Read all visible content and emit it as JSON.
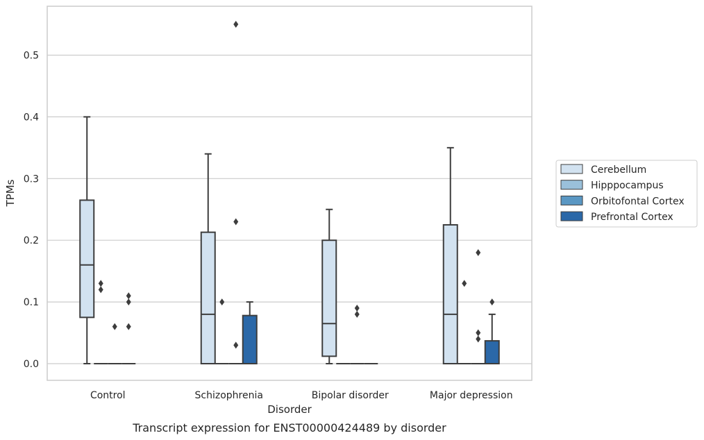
{
  "chart_data": {
    "type": "box",
    "title": "",
    "caption": "Transcript expression for ENST00000424489 by disorder",
    "xlabel": "Disorder",
    "ylabel": "TPMs",
    "ylim": [
      -0.027,
      0.58
    ],
    "yticks": [
      "0.0",
      "0.1",
      "0.2",
      "0.3",
      "0.4",
      "0.5"
    ],
    "categories": [
      "Control",
      "Schizophrenia",
      "Bipolar disorder",
      "Major depression"
    ],
    "grid": "horizontal",
    "legend_position": "right",
    "series": [
      {
        "name": "Cerebellum",
        "color": "#d2e2f0",
        "boxes": [
          {
            "whislo": 0.0,
            "q1": 0.075,
            "med": 0.16,
            "q3": 0.265,
            "whishi": 0.4,
            "fliers": []
          },
          {
            "whislo": 0.0,
            "q1": 0.0,
            "med": 0.08,
            "q3": 0.213,
            "whishi": 0.34,
            "fliers": []
          },
          {
            "whislo": 0.0,
            "q1": 0.012,
            "med": 0.065,
            "q3": 0.2,
            "whishi": 0.25,
            "fliers": []
          },
          {
            "whislo": 0.0,
            "q1": 0.0,
            "med": 0.08,
            "q3": 0.225,
            "whishi": 0.35,
            "fliers": []
          }
        ]
      },
      {
        "name": "Hipppocampus",
        "color": "#9ac0da",
        "boxes": [
          {
            "whislo": 0.0,
            "q1": 0.0,
            "med": 0.0,
            "q3": 0.0,
            "whishi": 0.0,
            "fliers": [
              0.12,
              0.13
            ]
          },
          {
            "whislo": 0.0,
            "q1": 0.0,
            "med": 0.0,
            "q3": 0.0,
            "whishi": 0.0,
            "fliers": [
              0.1
            ]
          },
          {
            "whislo": 0.0,
            "q1": 0.0,
            "med": 0.0,
            "q3": 0.0,
            "whishi": 0.0,
            "fliers": []
          },
          {
            "whislo": 0.0,
            "q1": 0.0,
            "med": 0.0,
            "q3": 0.0,
            "whishi": 0.0,
            "fliers": [
              0.13
            ]
          }
        ]
      },
      {
        "name": "Orbitofontal Cortex",
        "color": "#5a97c3",
        "boxes": [
          {
            "whislo": 0.0,
            "q1": 0.0,
            "med": 0.0,
            "q3": 0.0,
            "whishi": 0.0,
            "fliers": [
              0.06
            ]
          },
          {
            "whislo": 0.0,
            "q1": 0.0,
            "med": 0.0,
            "q3": 0.0,
            "whishi": 0.0,
            "fliers": [
              0.03,
              0.23,
              0.55
            ]
          },
          {
            "whislo": 0.0,
            "q1": 0.0,
            "med": 0.0,
            "q3": 0.0,
            "whishi": 0.0,
            "fliers": [
              0.08,
              0.09
            ]
          },
          {
            "whislo": 0.0,
            "q1": 0.0,
            "med": 0.0,
            "q3": 0.0,
            "whishi": 0.0,
            "fliers": [
              0.04,
              0.05,
              0.18
            ]
          }
        ]
      },
      {
        "name": "Prefrontal Cortex",
        "color": "#2b68a8",
        "boxes": [
          {
            "whislo": 0.0,
            "q1": 0.0,
            "med": 0.0,
            "q3": 0.0,
            "whishi": 0.0,
            "fliers": [
              0.06,
              0.1,
              0.11
            ]
          },
          {
            "whislo": 0.0,
            "q1": 0.0,
            "med": 0.0,
            "q3": 0.078,
            "whishi": 0.1,
            "fliers": []
          },
          {
            "whislo": 0.0,
            "q1": 0.0,
            "med": 0.0,
            "q3": 0.0,
            "whishi": 0.0,
            "fliers": []
          },
          {
            "whislo": 0.0,
            "q1": 0.0,
            "med": 0.0,
            "q3": 0.037,
            "whishi": 0.08,
            "fliers": [
              0.1
            ]
          }
        ]
      }
    ]
  }
}
